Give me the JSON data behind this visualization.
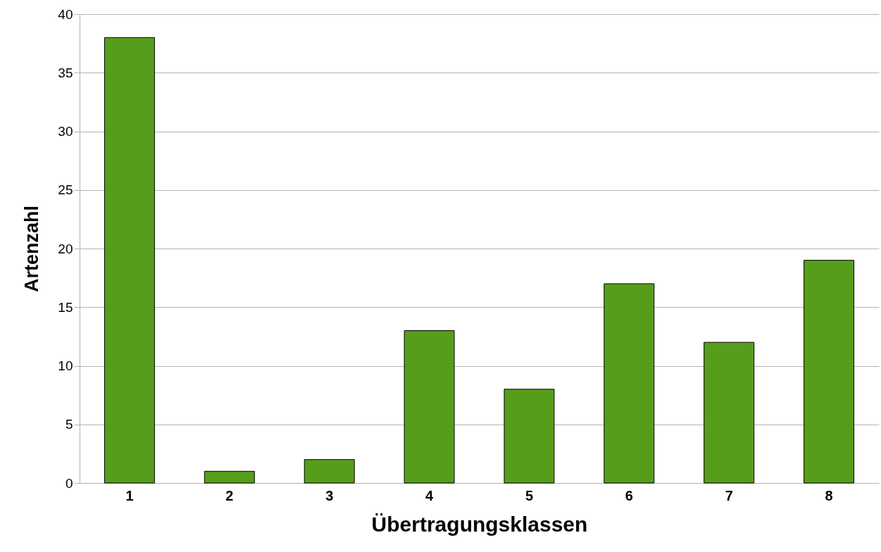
{
  "chart_data": {
    "type": "bar",
    "xlabel": "Übertragungsklassen",
    "ylabel": "Artenzahl",
    "categories": [
      "1",
      "2",
      "3",
      "4",
      "5",
      "6",
      "7",
      "8"
    ],
    "values": [
      38,
      1,
      2,
      13,
      8,
      17,
      12,
      19
    ],
    "color": "#579d1c",
    "ylim": [
      0,
      40
    ],
    "yticks": [
      0,
      5,
      10,
      15,
      20,
      25,
      30,
      35,
      40
    ],
    "grid": "y"
  }
}
